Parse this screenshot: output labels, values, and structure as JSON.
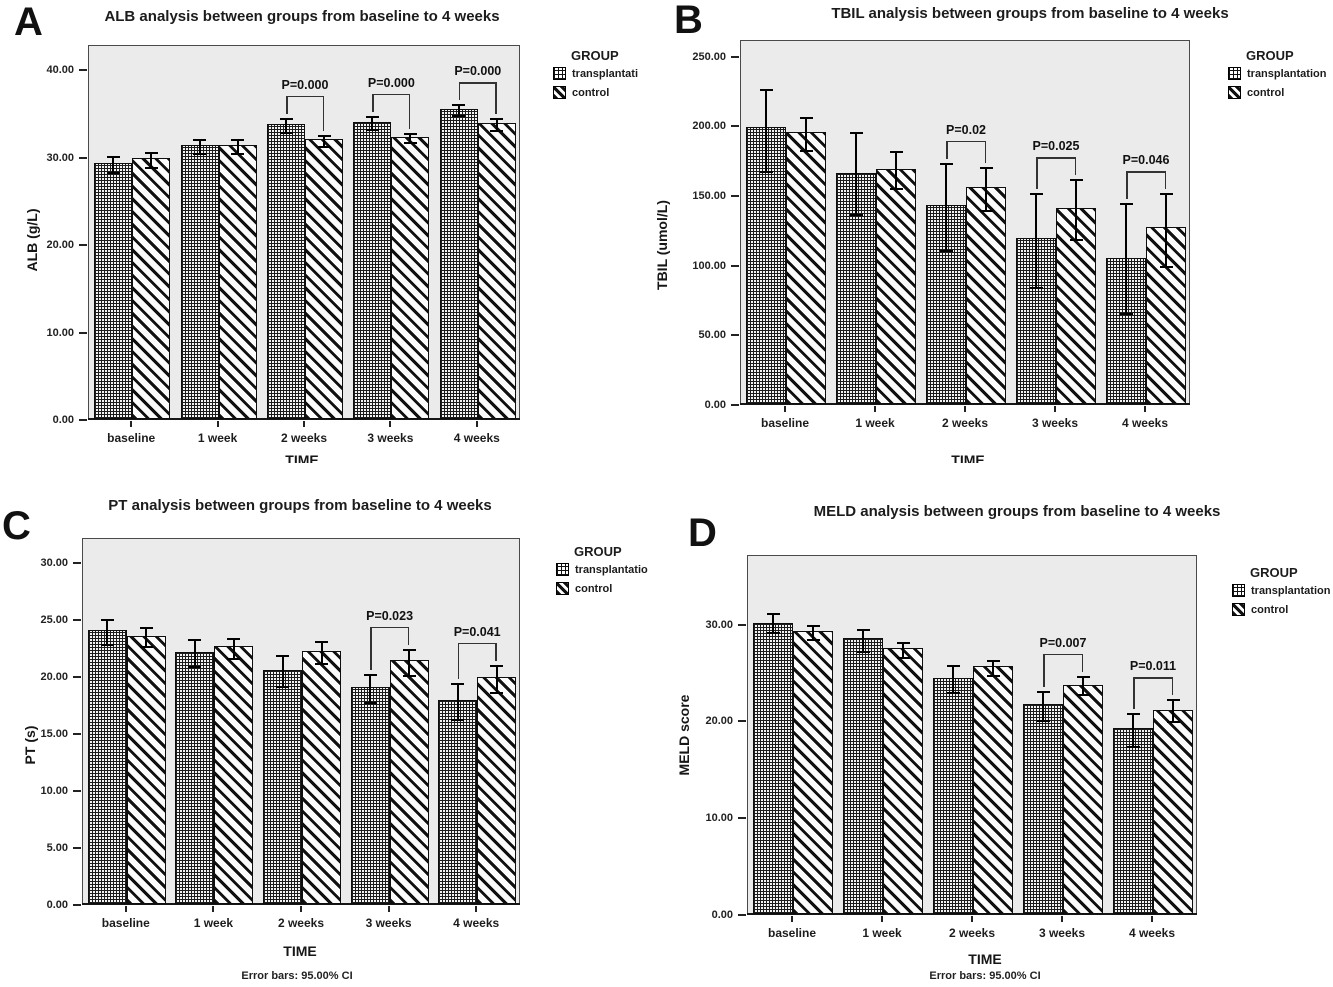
{
  "figure": {
    "legend_title": "GROUP",
    "error_bars_note": "Error bars: 95.00% CI"
  },
  "chart_data": [
    {
      "type": "bar",
      "panel_letter": "A",
      "title": "ALB analysis between groups from baseline to 4 weeks",
      "xlabel": "TIME",
      "ylabel": "ALB (g/L)",
      "legend_title": "GROUP",
      "legend_position": "right",
      "grid": false,
      "categories": [
        "baseline",
        "1 week",
        "2 weeks",
        "3 weeks",
        "4 weeks"
      ],
      "yticks": [
        0,
        10,
        20,
        30,
        40
      ],
      "ytick_labels": [
        "0.00",
        "10.00",
        "20.00",
        "30.00",
        "40.00"
      ],
      "ylim": [
        0,
        42.9
      ],
      "series": [
        {
          "name": "transplantation",
          "label": "transplantati",
          "pattern": "grid",
          "values": [
            29.3,
            31.3,
            33.8,
            34.0,
            35.5
          ],
          "ci_low": [
            28.4,
            30.5,
            33.0,
            33.3,
            34.9
          ],
          "ci_high": [
            30.2,
            32.1,
            34.6,
            34.8,
            36.1
          ]
        },
        {
          "name": "control",
          "label": "control",
          "pattern": "diagonal",
          "values": [
            29.9,
            31.4,
            32.0,
            32.3,
            33.9
          ],
          "ci_low": [
            29.0,
            30.6,
            31.3,
            31.8,
            33.2
          ],
          "ci_high": [
            30.7,
            32.1,
            32.6,
            32.8,
            34.5
          ]
        }
      ],
      "annotations": [
        {
          "category": "2 weeks",
          "label": "P=0.000"
        },
        {
          "category": "3 weeks",
          "label": "P=0.000"
        },
        {
          "category": "4 weeks",
          "label": "P=0.000"
        }
      ]
    },
    {
      "type": "bar",
      "panel_letter": "B",
      "title": "TBIL analysis between groups from baseline to 4 weeks",
      "xlabel": "TIME",
      "ylabel": "TBIL (umol/L)",
      "legend_title": "GROUP",
      "legend_position": "right",
      "grid": false,
      "categories": [
        "baseline",
        "1 week",
        "2 weeks",
        "3 weeks",
        "4 weeks"
      ],
      "yticks": [
        0,
        50,
        100,
        150,
        200,
        250
      ],
      "ytick_labels": [
        "0.00",
        "50.00",
        "100.00",
        "150.00",
        "200.00",
        "250.00"
      ],
      "ylim": [
        0,
        262
      ],
      "series": [
        {
          "name": "transplantation",
          "label": "transplantation",
          "pattern": "grid",
          "values": [
            199,
            166,
            143,
            119,
            105
          ],
          "ci_low": [
            168,
            137,
            111,
            85,
            66
          ],
          "ci_high": [
            227,
            196,
            174,
            152,
            145
          ]
        },
        {
          "name": "control",
          "label": "control",
          "pattern": "diagonal",
          "values": [
            195,
            169,
            156,
            141,
            127
          ],
          "ci_low": [
            183,
            156,
            140,
            119,
            100
          ],
          "ci_high": [
            207,
            182,
            171,
            162,
            152
          ]
        }
      ],
      "annotations": [
        {
          "category": "2 weeks",
          "label": "P=0.02"
        },
        {
          "category": "3 weeks",
          "label": "P=0.025"
        },
        {
          "category": "4 weeks",
          "label": "P=0.046"
        }
      ]
    },
    {
      "type": "bar",
      "panel_letter": "C",
      "title": "PT analysis between groups from baseline to 4 weeks",
      "xlabel": "TIME",
      "ylabel": "PT (s)",
      "legend_title": "GROUP",
      "legend_position": "right",
      "grid": false,
      "footnote": "Error bars: 95.00% CI",
      "categories": [
        "baseline",
        "1 week",
        "2 weeks",
        "3 weeks",
        "4 weeks"
      ],
      "yticks": [
        0,
        5,
        10,
        15,
        20,
        25,
        30
      ],
      "ytick_labels": [
        "0.00",
        "5.00",
        "10.00",
        "15.00",
        "20.00",
        "25.00",
        "30.00"
      ],
      "ylim": [
        0,
        32.2
      ],
      "series": [
        {
          "name": "transplantation",
          "label": "transplantatio",
          "pattern": "grid",
          "values": [
            24.0,
            22.1,
            20.5,
            19.0,
            17.9
          ],
          "ci_low": [
            22.9,
            21.0,
            19.2,
            17.8,
            16.3
          ],
          "ci_high": [
            25.1,
            23.3,
            21.9,
            20.3,
            19.5
          ]
        },
        {
          "name": "control",
          "label": "control",
          "pattern": "diagonal",
          "values": [
            23.5,
            22.6,
            22.2,
            21.4,
            19.9
          ],
          "ci_low": [
            22.7,
            21.7,
            21.2,
            20.2,
            18.7
          ],
          "ci_high": [
            24.4,
            23.4,
            23.2,
            22.5,
            21.1
          ]
        }
      ],
      "annotations": [
        {
          "category": "3 weeks",
          "label": "P=0.023"
        },
        {
          "category": "4 weeks",
          "label": "P=0.041"
        }
      ]
    },
    {
      "type": "bar",
      "panel_letter": "D",
      "title": "MELD analysis between groups from baseline to 4 weeks",
      "xlabel": "TIME",
      "ylabel": "MELD score",
      "legend_title": "GROUP",
      "legend_position": "right",
      "grid": false,
      "footnote": "Error bars: 95.00% CI",
      "categories": [
        "baseline",
        "1 week",
        "2 weeks",
        "3 weeks",
        "4 weeks"
      ],
      "yticks": [
        0,
        10,
        20,
        30
      ],
      "ytick_labels": [
        "0.00",
        "10.00",
        "20.00",
        "30.00"
      ],
      "ylim": [
        0,
        37.2
      ],
      "series": [
        {
          "name": "transplantation",
          "label": "transplantation",
          "pattern": "grid",
          "values": [
            30.1,
            28.5,
            24.4,
            21.7,
            19.2
          ],
          "ci_low": [
            29.2,
            27.3,
            23.0,
            20.2,
            17.5
          ],
          "ci_high": [
            31.2,
            29.6,
            25.8,
            23.1,
            20.9
          ]
        },
        {
          "name": "control",
          "label": "control",
          "pattern": "diagonal",
          "values": [
            29.2,
            27.5,
            25.6,
            23.7,
            21.1
          ],
          "ci_low": [
            28.5,
            26.7,
            24.8,
            22.8,
            20.0
          ],
          "ci_high": [
            30.0,
            28.2,
            26.4,
            24.7,
            22.3
          ]
        }
      ],
      "annotations": [
        {
          "category": "3 weeks",
          "label": "P=0.007"
        },
        {
          "category": "4 weeks",
          "label": "P=0.011"
        }
      ]
    }
  ]
}
